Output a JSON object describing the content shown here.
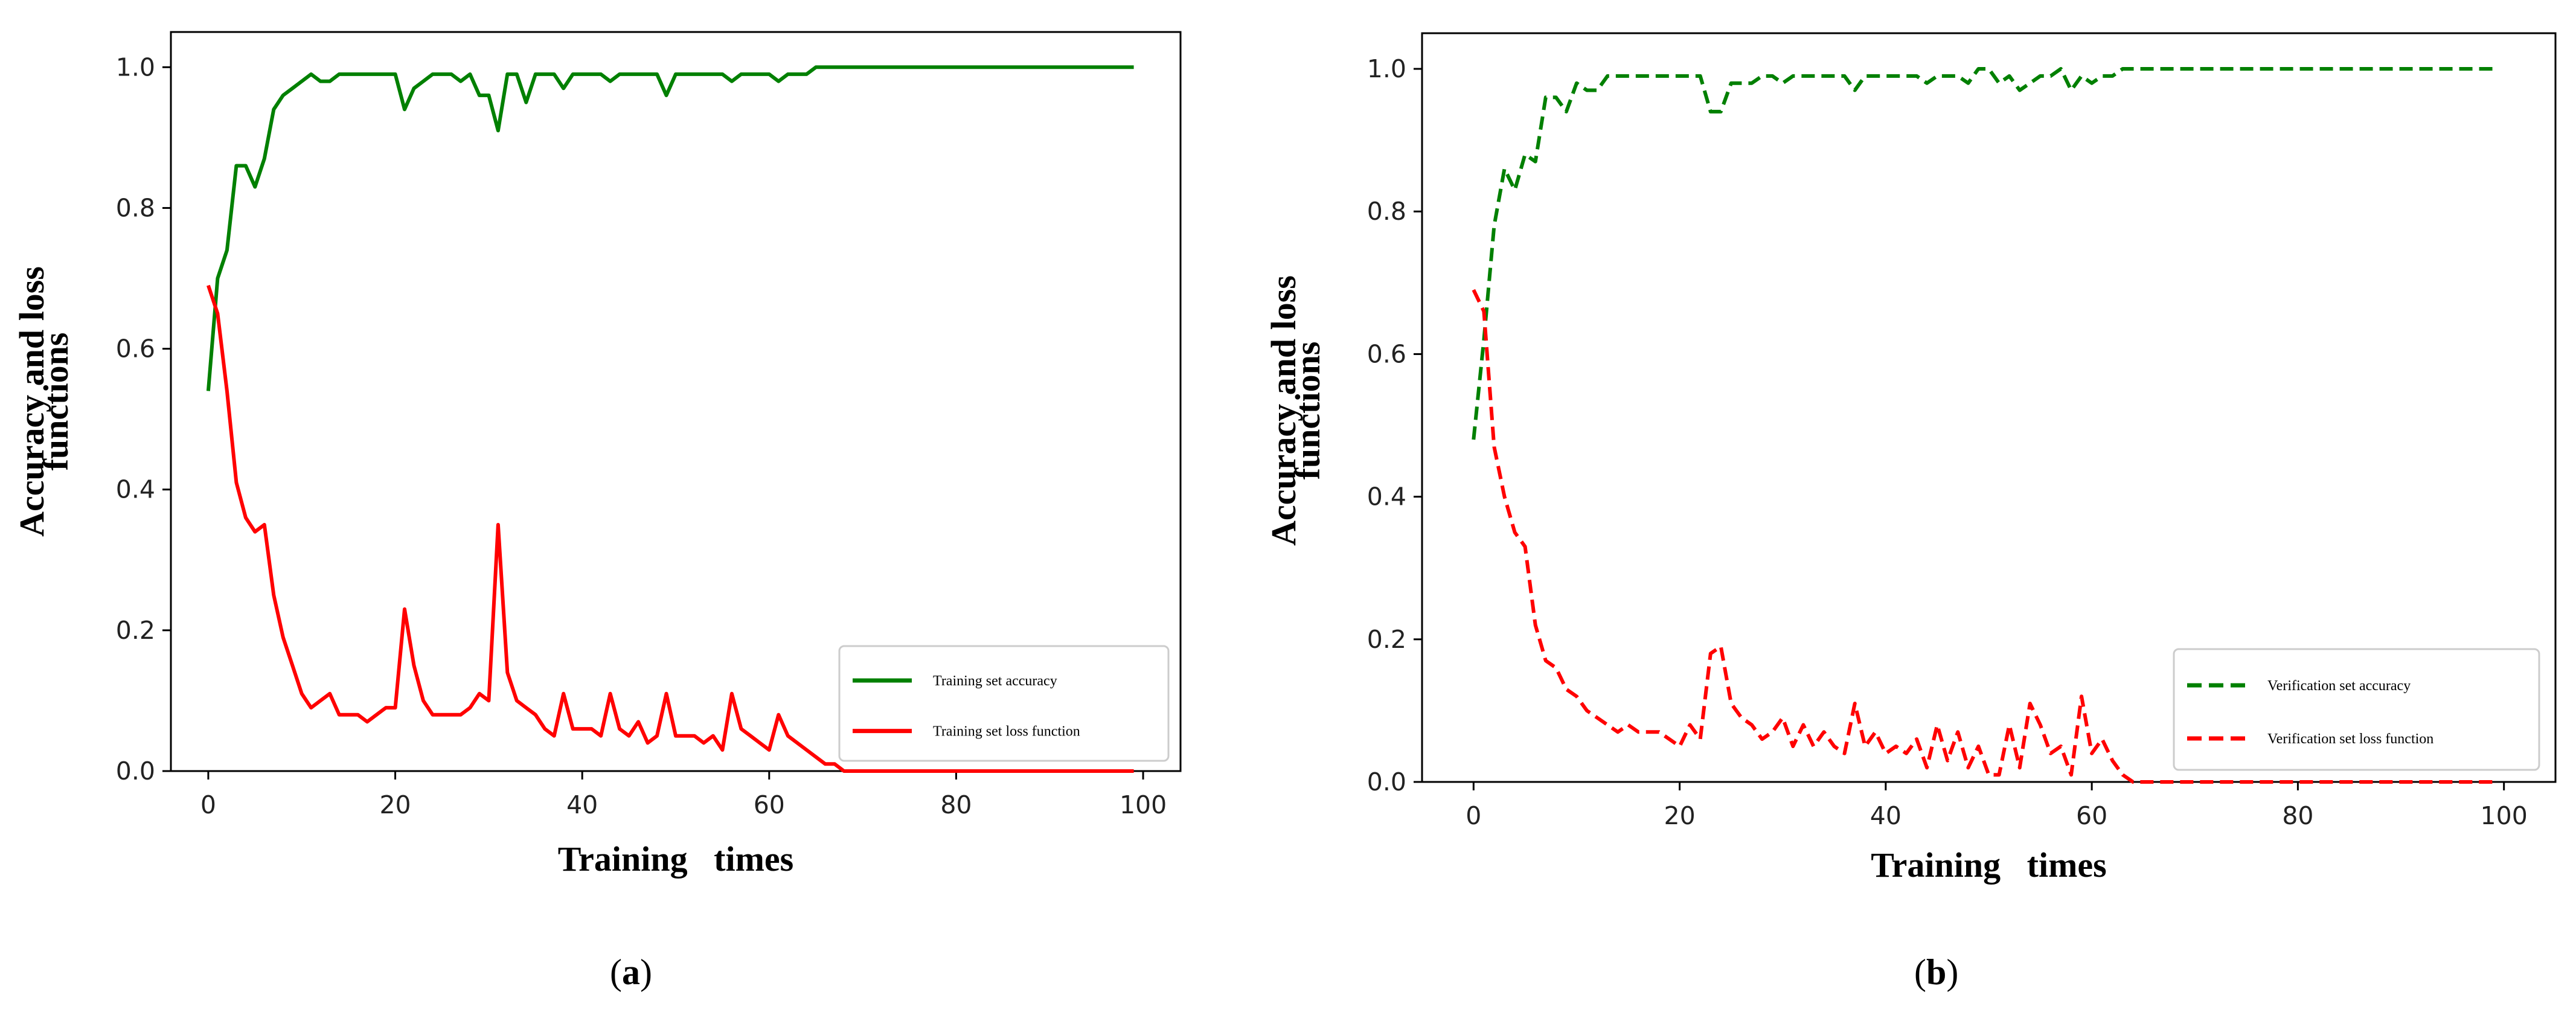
{
  "chart_data": [
    {
      "type": "line",
      "panel": "a",
      "caption_open": "(",
      "caption_letter": "a",
      "caption_close": ")",
      "title": "",
      "xlabel": "Training   times",
      "ylabel_line1": "Accuracy and loss",
      "ylabel_line2": "functions",
      "xlim": [
        -4,
        104
      ],
      "ylim": [
        0,
        1.05
      ],
      "xticks": [
        0,
        20,
        40,
        60,
        80,
        100
      ],
      "yticks": [
        0.0,
        0.2,
        0.4,
        0.6,
        0.8,
        1.0
      ],
      "xtick_labels": [
        "0",
        "20",
        "40",
        "60",
        "80",
        "100"
      ],
      "ytick_labels": [
        "0.0",
        "0.2",
        "0.4",
        "0.6",
        "0.8",
        "1.0"
      ],
      "legend_position": "lower-right",
      "series": [
        {
          "name": "Training set accuracy",
          "color": "#008000",
          "style": "solid",
          "x": [
            0,
            1,
            2,
            3,
            4,
            5,
            6,
            7,
            8,
            9,
            10,
            11,
            12,
            13,
            14,
            15,
            16,
            17,
            18,
            19,
            20,
            21,
            22,
            23,
            24,
            25,
            26,
            27,
            28,
            29,
            30,
            31,
            32,
            33,
            34,
            35,
            36,
            37,
            38,
            39,
            40,
            41,
            42,
            43,
            44,
            45,
            46,
            47,
            48,
            49,
            50,
            51,
            52,
            53,
            54,
            55,
            56,
            57,
            58,
            59,
            60,
            61,
            62,
            63,
            64,
            65,
            66,
            67,
            68,
            69,
            70,
            71,
            72,
            73,
            74,
            75,
            76,
            77,
            78,
            79,
            80,
            81,
            82,
            83,
            84,
            85,
            86,
            87,
            88,
            89,
            90,
            91,
            92,
            93,
            94,
            95,
            96,
            97,
            98,
            99
          ],
          "values": [
            0.54,
            0.7,
            0.74,
            0.86,
            0.86,
            0.83,
            0.87,
            0.94,
            0.96,
            0.97,
            0.98,
            0.99,
            0.98,
            0.98,
            0.99,
            0.99,
            0.99,
            0.99,
            0.99,
            0.99,
            0.99,
            0.94,
            0.97,
            0.98,
            0.99,
            0.99,
            0.99,
            0.98,
            0.99,
            0.96,
            0.96,
            0.91,
            0.99,
            0.99,
            0.95,
            0.99,
            0.99,
            0.99,
            0.97,
            0.99,
            0.99,
            0.99,
            0.99,
            0.98,
            0.99,
            0.99,
            0.99,
            0.99,
            0.99,
            0.96,
            0.99,
            0.99,
            0.99,
            0.99,
            0.99,
            0.99,
            0.98,
            0.99,
            0.99,
            0.99,
            0.99,
            0.98,
            0.99,
            0.99,
            0.99,
            1.0,
            1.0,
            1.0,
            1.0,
            1.0,
            1.0,
            1.0,
            1.0,
            1.0,
            1.0,
            1.0,
            1.0,
            1.0,
            1.0,
            1.0,
            1.0,
            1.0,
            1.0,
            1.0,
            1.0,
            1.0,
            1.0,
            1.0,
            1.0,
            1.0,
            1.0,
            1.0,
            1.0,
            1.0,
            1.0,
            1.0,
            1.0,
            1.0,
            1.0,
            1.0
          ]
        },
        {
          "name": "Training set loss function",
          "color": "#ff0000",
          "style": "solid",
          "x": [
            0,
            1,
            2,
            3,
            4,
            5,
            6,
            7,
            8,
            9,
            10,
            11,
            12,
            13,
            14,
            15,
            16,
            17,
            18,
            19,
            20,
            21,
            22,
            23,
            24,
            25,
            26,
            27,
            28,
            29,
            30,
            31,
            32,
            33,
            34,
            35,
            36,
            37,
            38,
            39,
            40,
            41,
            42,
            43,
            44,
            45,
            46,
            47,
            48,
            49,
            50,
            51,
            52,
            53,
            54,
            55,
            56,
            57,
            58,
            59,
            60,
            61,
            62,
            63,
            64,
            65,
            66,
            67,
            68,
            69,
            70,
            71,
            72,
            73,
            74,
            75,
            76,
            77,
            78,
            79,
            80,
            81,
            82,
            83,
            84,
            85,
            86,
            87,
            88,
            89,
            90,
            91,
            92,
            93,
            94,
            95,
            96,
            97,
            98,
            99
          ],
          "values": [
            0.69,
            0.65,
            0.54,
            0.41,
            0.36,
            0.34,
            0.35,
            0.25,
            0.19,
            0.15,
            0.11,
            0.09,
            0.1,
            0.11,
            0.08,
            0.08,
            0.08,
            0.07,
            0.08,
            0.09,
            0.09,
            0.23,
            0.15,
            0.1,
            0.08,
            0.08,
            0.08,
            0.08,
            0.09,
            0.11,
            0.1,
            0.35,
            0.14,
            0.1,
            0.09,
            0.08,
            0.06,
            0.05,
            0.11,
            0.06,
            0.06,
            0.06,
            0.05,
            0.11,
            0.06,
            0.05,
            0.07,
            0.04,
            0.05,
            0.11,
            0.05,
            0.05,
            0.05,
            0.04,
            0.05,
            0.03,
            0.11,
            0.06,
            0.05,
            0.04,
            0.03,
            0.08,
            0.05,
            0.04,
            0.03,
            0.02,
            0.01,
            0.01,
            0.0,
            0.0,
            0.0,
            0.0,
            0.0,
            0.0,
            0.0,
            0.0,
            0.0,
            0.0,
            0.0,
            0.0,
            0.0,
            0.0,
            0.0,
            0.0,
            0.0,
            0.0,
            0.0,
            0.0,
            0.0,
            0.0,
            0.0,
            0.0,
            0.0,
            0.0,
            0.0,
            0.0,
            0.0,
            0.0,
            0.0,
            0.0
          ]
        }
      ]
    },
    {
      "type": "line",
      "panel": "b",
      "caption_open": "(",
      "caption_letter": "b",
      "caption_close": ")",
      "title": "",
      "xlabel": "Training   times",
      "ylabel_line1": "Accuracy and loss",
      "ylabel_line2": "functions",
      "xlim": [
        -5,
        105
      ],
      "ylim": [
        0,
        1.05
      ],
      "xticks": [
        0,
        20,
        40,
        60,
        80,
        100
      ],
      "yticks": [
        0.0,
        0.2,
        0.4,
        0.6,
        0.8,
        1.0
      ],
      "xtick_labels": [
        "0",
        "20",
        "40",
        "60",
        "80",
        "100"
      ],
      "ytick_labels": [
        "0.0",
        "0.2",
        "0.4",
        "0.6",
        "0.8",
        "1.0"
      ],
      "legend_position": "lower-right",
      "series": [
        {
          "name": "Verification set accuracy",
          "color": "#008000",
          "style": "dashed",
          "x": [
            0,
            1,
            2,
            3,
            4,
            5,
            6,
            7,
            8,
            9,
            10,
            11,
            12,
            13,
            14,
            15,
            16,
            17,
            18,
            19,
            20,
            21,
            22,
            23,
            24,
            25,
            26,
            27,
            28,
            29,
            30,
            31,
            32,
            33,
            34,
            35,
            36,
            37,
            38,
            39,
            40,
            41,
            42,
            43,
            44,
            45,
            46,
            47,
            48,
            49,
            50,
            51,
            52,
            53,
            54,
            55,
            56,
            57,
            58,
            59,
            60,
            61,
            62,
            63,
            64,
            65,
            66,
            67,
            68,
            69,
            70,
            71,
            72,
            73,
            74,
            75,
            76,
            77,
            78,
            79,
            80,
            81,
            82,
            83,
            84,
            85,
            86,
            87,
            88,
            89,
            90,
            91,
            92,
            93,
            94,
            95,
            96,
            97,
            98,
            99
          ],
          "values": [
            0.48,
            0.62,
            0.78,
            0.86,
            0.83,
            0.88,
            0.87,
            0.96,
            0.96,
            0.94,
            0.98,
            0.97,
            0.97,
            0.99,
            0.99,
            0.99,
            0.99,
            0.99,
            0.99,
            0.99,
            0.99,
            0.99,
            0.99,
            0.94,
            0.94,
            0.98,
            0.98,
            0.98,
            0.99,
            0.99,
            0.98,
            0.99,
            0.99,
            0.99,
            0.99,
            0.99,
            0.99,
            0.97,
            0.99,
            0.99,
            0.99,
            0.99,
            0.99,
            0.99,
            0.98,
            0.99,
            0.99,
            0.99,
            0.98,
            1.0,
            1.0,
            0.98,
            0.99,
            0.97,
            0.98,
            0.99,
            0.99,
            1.0,
            0.97,
            0.99,
            0.98,
            0.99,
            0.99,
            1.0,
            1.0,
            1.0,
            1.0,
            1.0,
            1.0,
            1.0,
            1.0,
            1.0,
            1.0,
            1.0,
            1.0,
            1.0,
            1.0,
            1.0,
            1.0,
            1.0,
            1.0,
            1.0,
            1.0,
            1.0,
            1.0,
            1.0,
            1.0,
            1.0,
            1.0,
            1.0,
            1.0,
            1.0,
            1.0,
            1.0,
            1.0,
            1.0,
            1.0,
            1.0,
            1.0,
            1.0
          ]
        },
        {
          "name": "Verification set loss function",
          "color": "#ff0000",
          "style": "dashed",
          "x": [
            0,
            1,
            2,
            3,
            4,
            5,
            6,
            7,
            8,
            9,
            10,
            11,
            12,
            13,
            14,
            15,
            16,
            17,
            18,
            19,
            20,
            21,
            22,
            23,
            24,
            25,
            26,
            27,
            28,
            29,
            30,
            31,
            32,
            33,
            34,
            35,
            36,
            37,
            38,
            39,
            40,
            41,
            42,
            43,
            44,
            45,
            46,
            47,
            48,
            49,
            50,
            51,
            52,
            53,
            54,
            55,
            56,
            57,
            58,
            59,
            60,
            61,
            62,
            63,
            64,
            65,
            66,
            67,
            68,
            69,
            70,
            71,
            72,
            73,
            74,
            75,
            76,
            77,
            78,
            79,
            80,
            81,
            82,
            83,
            84,
            85,
            86,
            87,
            88,
            89,
            90,
            91,
            92,
            93,
            94,
            95,
            96,
            97,
            98,
            99
          ],
          "values": [
            0.69,
            0.66,
            0.47,
            0.4,
            0.35,
            0.33,
            0.22,
            0.17,
            0.16,
            0.13,
            0.12,
            0.1,
            0.09,
            0.08,
            0.07,
            0.08,
            0.07,
            0.07,
            0.07,
            0.06,
            0.05,
            0.08,
            0.06,
            0.18,
            0.19,
            0.11,
            0.09,
            0.08,
            0.06,
            0.07,
            0.09,
            0.05,
            0.08,
            0.05,
            0.07,
            0.05,
            0.04,
            0.11,
            0.05,
            0.07,
            0.04,
            0.05,
            0.04,
            0.06,
            0.02,
            0.08,
            0.03,
            0.07,
            0.02,
            0.05,
            0.01,
            0.01,
            0.08,
            0.02,
            0.11,
            0.08,
            0.04,
            0.05,
            0.01,
            0.12,
            0.04,
            0.06,
            0.03,
            0.01,
            0.0,
            0.0,
            0.0,
            0.0,
            0.0,
            0.0,
            0.0,
            0.0,
            0.0,
            0.0,
            0.0,
            0.0,
            0.0,
            0.0,
            0.0,
            0.0,
            0.0,
            0.0,
            0.0,
            0.0,
            0.0,
            0.0,
            0.0,
            0.0,
            0.0,
            0.0,
            0.0,
            0.0,
            0.0,
            0.0,
            0.0,
            0.0,
            0.0,
            0.0,
            0.0,
            0.0
          ]
        }
      ]
    }
  ]
}
